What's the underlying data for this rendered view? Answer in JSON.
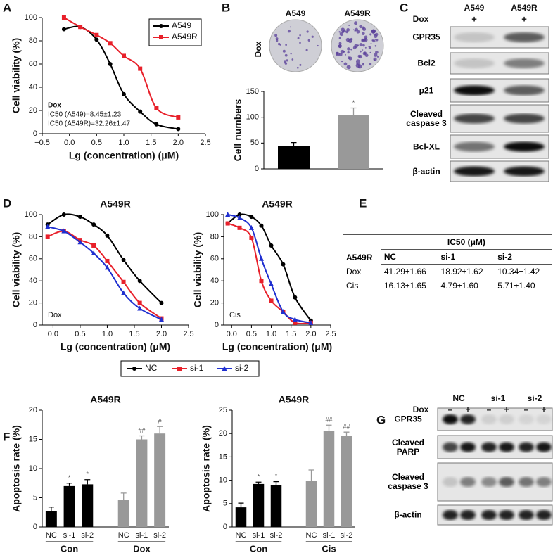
{
  "panels": {
    "letters": [
      "A",
      "B",
      "C",
      "D",
      "E",
      "F",
      "G"
    ]
  },
  "dishes": {
    "treatment": "Dox",
    "labels": [
      "A549",
      "A549R"
    ]
  },
  "blot_c": {
    "treatment": "Dox",
    "columns": [
      "A549",
      "A549R"
    ],
    "signs": [
      "+",
      "+"
    ],
    "rows": [
      "GPR35",
      "Bcl2",
      "p21",
      "Cleaved caspase 3",
      "Bcl-XL",
      "β-actin"
    ]
  },
  "table": {
    "corner": "A549R",
    "header": "IC50 (μM)",
    "columns": [
      "NC",
      "si-1",
      "si-2"
    ],
    "rows": [
      [
        "Dox",
        "41.29±1.66",
        "18.92±1.62",
        "10.34±1.42"
      ],
      [
        "Cis",
        "16.13±1.65",
        "4.79±1.60",
        "5.71±1.40"
      ]
    ]
  },
  "blot_g": {
    "treatment": "Dox",
    "columns": [
      "NC",
      "si-1",
      "si-2"
    ],
    "signs": [
      "–",
      "+",
      "–",
      "+",
      "–",
      "+"
    ],
    "rows": [
      "GPR35",
      "Cleaved PARP",
      "Cleaved caspase 3",
      "β-actin"
    ]
  },
  "chart_data": [
    {
      "type": "line",
      "xlabel": "Lg (concentration) (μM)",
      "ylabel": "Cell viability (%)",
      "x": [
        -0.1,
        0.2,
        0.5,
        0.75,
        1.0,
        1.3,
        1.6,
        2.0
      ],
      "series": [
        {
          "name": "A549",
          "color": "#000000",
          "marker": "circle",
          "values": [
            90,
            92,
            81,
            60,
            34,
            19,
            8,
            4
          ]
        },
        {
          "name": "A549R",
          "color": "#e8202a",
          "marker": "square",
          "values": [
            100,
            92,
            85,
            78,
            67,
            56,
            22,
            14
          ]
        }
      ],
      "xlim": [
        -0.5,
        2.5
      ],
      "xticks": [
        {
          "value": -0.5,
          "label": "−0.5"
        },
        {
          "value": 0,
          "label": "0.0"
        },
        0.5,
        {
          "value": 1,
          "label": "1.0"
        },
        1.5,
        {
          "value": 2,
          "label": "2.0"
        },
        2.5
      ],
      "ylim": [
        0,
        100
      ],
      "yticks": [
        0,
        20,
        40,
        60,
        80,
        100
      ],
      "legend": "upper right",
      "annotations": [
        "Dox",
        "IC50 (A549)=8.45±1.23",
        "IC50 (A549R)=32.26±1.47"
      ]
    },
    {
      "type": "bar",
      "ylabel": "Cell numbers",
      "categories": [
        null,
        null
      ],
      "values": [
        45,
        105
      ],
      "errors": [
        6,
        13
      ],
      "colors": [
        "#000000",
        "#999999"
      ],
      "annotations": [
        null,
        "*"
      ],
      "ylim": [
        0,
        150
      ],
      "yticks": [
        0,
        50,
        100,
        150
      ]
    },
    {
      "type": "line",
      "title": "A549R",
      "xlabel": "Lg (concentration) (μM)",
      "ylabel": "Cell viability (%)",
      "x": [
        -0.1,
        0.2,
        0.5,
        0.75,
        1.0,
        1.3,
        1.6,
        2.0
      ],
      "series": [
        {
          "name": "NC",
          "color": "#000000",
          "marker": "circle",
          "values": [
            91,
            100,
            98,
            91,
            81,
            59,
            40,
            20
          ]
        },
        {
          "name": "si-1",
          "color": "#e8202a",
          "marker": "square",
          "values": [
            80,
            85,
            77,
            72,
            58,
            39,
            20,
            6
          ]
        },
        {
          "name": "si-2",
          "color": "#1f2fd0",
          "marker": "triangle",
          "values": [
            89,
            85,
            75,
            65,
            52,
            29,
            15,
            5
          ]
        }
      ],
      "xlim": [
        -0.2,
        2.5
      ],
      "xticks": [
        {
          "value": 0,
          "label": "0.0"
        },
        0.5,
        {
          "value": 1,
          "label": "1.0"
        },
        1.5,
        {
          "value": 2,
          "label": "2.0"
        },
        2.5
      ],
      "ylim": [
        0,
        100
      ],
      "yticks": [
        0,
        20,
        40,
        60,
        80,
        100
      ],
      "legend": "below",
      "annotations": [
        "Dox"
      ]
    },
    {
      "type": "line",
      "title": "A549R",
      "xlabel": "Lg (concentration) (μM)",
      "ylabel": "Cell viability (%)",
      "x": [
        -0.1,
        0.2,
        0.5,
        0.75,
        1.0,
        1.3,
        1.6,
        2.0
      ],
      "series": [
        {
          "color": "#000000",
          "marker": "circle",
          "values": [
            92,
            100,
            98,
            90,
            72,
            55,
            25,
            4
          ]
        },
        {
          "color": "#e8202a",
          "marker": "square",
          "values": [
            92,
            88,
            79,
            40,
            22,
            12,
            2,
            2
          ]
        },
        {
          "color": "#1f2fd0",
          "marker": "triangle",
          "values": [
            100,
            97,
            88,
            60,
            37,
            12,
            5,
            2
          ]
        }
      ],
      "xlim": [
        -0.2,
        2.5
      ],
      "xticks": [
        {
          "value": 0,
          "label": "0.0"
        },
        0.5,
        {
          "value": 1,
          "label": "1.0"
        },
        1.5,
        {
          "value": 2,
          "label": "2.0"
        },
        2.5
      ],
      "ylim": [
        0,
        100
      ],
      "yticks": [
        0,
        20,
        40,
        60,
        80,
        100
      ],
      "annotations": [
        "Cis"
      ]
    },
    {
      "type": "bar",
      "title": "A549R",
      "ylabel": "Apoptosis rate (%)",
      "categories": [
        "NC",
        "si-1",
        "si-2",
        "NC",
        "si-1",
        "si-2"
      ],
      "group_labels": [
        "Con",
        "Dox"
      ],
      "values": [
        2.7,
        7.0,
        7.3,
        4.6,
        15.0,
        16.0
      ],
      "errors": [
        0.7,
        0.5,
        0.8,
        1.2,
        0.6,
        1.2
      ],
      "colors": [
        "#000000",
        "#000000",
        "#000000",
        "#999999",
        "#999999",
        "#999999"
      ],
      "annotations": [
        null,
        "*",
        "*",
        null,
        "##",
        "#"
      ],
      "ylim": [
        0,
        20
      ],
      "yticks": [
        0,
        5,
        10,
        15,
        20
      ]
    },
    {
      "type": "bar",
      "title": "A549R",
      "ylabel": "Apoptosis rate (%)",
      "categories": [
        "NC",
        "si-1",
        "si-2",
        "NC",
        "si-1",
        "si-2"
      ],
      "group_labels": [
        "Con",
        "Cis"
      ],
      "values": [
        4.2,
        9.2,
        8.9,
        9.9,
        20.5,
        19.5
      ],
      "errors": [
        0.9,
        0.4,
        0.8,
        2.3,
        1.3,
        0.8
      ],
      "colors": [
        "#000000",
        "#000000",
        "#000000",
        "#999999",
        "#999999",
        "#999999"
      ],
      "annotations": [
        null,
        "*",
        "*",
        null,
        "##",
        "##"
      ],
      "ylim": [
        0,
        25
      ],
      "yticks": [
        0,
        5,
        10,
        15,
        20,
        25
      ]
    }
  ]
}
